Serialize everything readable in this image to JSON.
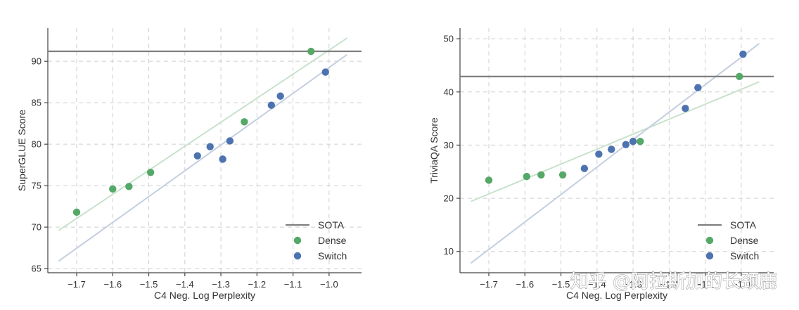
{
  "colors": {
    "sota": "#7f7f7f",
    "dense": "#55a868",
    "switch": "#4c72b0",
    "dense_fit": "#c7e2cc",
    "switch_fit": "#c4cfe0"
  },
  "watermark": "知乎 @阿拉斯加的长颈鹿",
  "chart_data": [
    {
      "type": "scatter",
      "xlabel": "C4 Neg. Log Perplexity",
      "ylabel": "SuperGLUE Score",
      "xlim": [
        -1.78,
        -0.91
      ],
      "ylim": [
        64.5,
        94.0
      ],
      "xticks": [
        -1.7,
        -1.6,
        -1.5,
        -1.4,
        -1.3,
        -1.2,
        -1.1,
        -1.0
      ],
      "xtick_labels": [
        "−1.7",
        "−1.6",
        "−1.5",
        "−1.4",
        "−1.3",
        "−1.2",
        "−1.1",
        "−1.0"
      ],
      "yticks": [
        65,
        70,
        75,
        80,
        85,
        90
      ],
      "ytick_labels": [
        "65",
        "70",
        "75",
        "80",
        "85",
        "90"
      ],
      "grid": true,
      "legend_position": "bottom-right",
      "sota": {
        "name": "SOTA",
        "value": 91.2
      },
      "series": [
        {
          "name": "Dense",
          "x": [
            -1.7,
            -1.6,
            -1.555,
            -1.495,
            -1.235,
            -1.05
          ],
          "y": [
            71.8,
            74.6,
            74.9,
            76.6,
            82.7,
            91.2
          ],
          "fit": {
            "x": [
              -1.75,
              -0.95
            ],
            "y": [
              69.6,
              92.8
            ]
          }
        },
        {
          "name": "Switch",
          "x": [
            -1.365,
            -1.33,
            -1.295,
            -1.275,
            -1.16,
            -1.135,
            -1.01
          ],
          "y": [
            78.6,
            79.7,
            78.2,
            80.4,
            84.7,
            85.8,
            88.7
          ],
          "fit": {
            "x": [
              -1.75,
              -0.95
            ],
            "y": [
              65.9,
              90.8
            ]
          }
        }
      ]
    },
    {
      "type": "scatter",
      "xlabel": "C4 Neg. Log Perplexity",
      "ylabel": "TriviaQA Score",
      "xlim": [
        -1.78,
        -0.91
      ],
      "ylim": [
        6.0,
        52.0
      ],
      "xticks": [
        -1.7,
        -1.6,
        -1.5,
        -1.4,
        -1.3,
        -1.2,
        -1.1,
        -1.0
      ],
      "xtick_labels": [
        "−1.7",
        "−1.6",
        "−1.5",
        "−1.4",
        "−1.3",
        "−1.2",
        "−1.1",
        "−1.0"
      ],
      "yticks": [
        10,
        20,
        30,
        40,
        50
      ],
      "ytick_labels": [
        "10",
        "20",
        "30",
        "40",
        "50"
      ],
      "grid": true,
      "legend_position": "bottom-right",
      "sota": {
        "name": "SOTA",
        "value": 42.9
      },
      "series": [
        {
          "name": "Dense",
          "x": [
            -1.7,
            -1.595,
            -1.555,
            -1.495,
            -1.28,
            -1.005
          ],
          "y": [
            23.4,
            24.1,
            24.4,
            24.4,
            30.7,
            42.9
          ],
          "fit": {
            "x": [
              -1.75,
              -0.95
            ],
            "y": [
              19.4,
              41.9
            ]
          }
        },
        {
          "name": "Switch",
          "x": [
            -1.435,
            -1.395,
            -1.36,
            -1.32,
            -1.3,
            -1.155,
            -1.12,
            -0.995
          ],
          "y": [
            25.6,
            28.3,
            29.2,
            30.1,
            30.7,
            36.9,
            40.8,
            47.1
          ],
          "fit": {
            "x": [
              -1.75,
              -0.95
            ],
            "y": [
              7.8,
              49.1
            ]
          }
        }
      ]
    }
  ]
}
